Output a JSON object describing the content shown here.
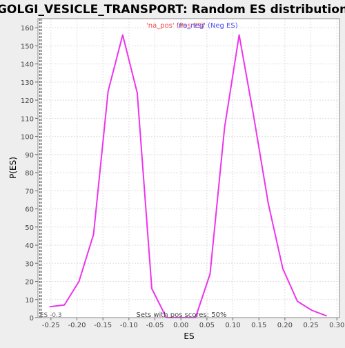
{
  "chart_data": {
    "type": "line",
    "title": "GOLGI_VESICLE_TRANSPORT: Random ES distribution",
    "xlabel": "ES",
    "ylabel": "P(ES)",
    "xlim": [
      -0.275,
      0.305
    ],
    "ylim": [
      0,
      165
    ],
    "x_ticks": [
      "-0.25",
      "-0.20",
      "-0.15",
      "-0.10",
      "-0.05",
      "0.00",
      "0.05",
      "0.10",
      "0.15",
      "0.20",
      "0.25",
      "0.30"
    ],
    "y_ticks": [
      "0",
      "10",
      "20",
      "30",
      "40",
      "50",
      "60",
      "70",
      "80",
      "90",
      "100",
      "110",
      "120",
      "130",
      "140",
      "150",
      "160"
    ],
    "grid": true,
    "legend": {
      "placement": "top-center",
      "entries": [
        {
          "label": "'na_pos' (Pos ES)",
          "color": "#f24b4b"
        },
        {
          "label": "'na_neg' (Neg ES)",
          "color": "#4b4bf2"
        }
      ]
    },
    "series": [
      {
        "color": "#ee33ee",
        "x": [
          -0.252,
          -0.224,
          -0.196,
          -0.168,
          -0.14,
          -0.112,
          -0.084,
          -0.056,
          -0.028,
          0.0,
          0.028,
          0.056,
          0.084,
          0.112,
          0.14,
          0.168,
          0.196,
          0.224,
          0.252,
          0.28
        ],
        "y": [
          6,
          7,
          20,
          46,
          125,
          156,
          124,
          16,
          0,
          0,
          0,
          24,
          105,
          156,
          111,
          63,
          27,
          9,
          4,
          1
        ]
      }
    ],
    "annotations": {
      "es_marker": {
        "x": -0.27,
        "label": "ES -0.3"
      },
      "bottom_text": "Sets with pos scores: 50%"
    }
  }
}
